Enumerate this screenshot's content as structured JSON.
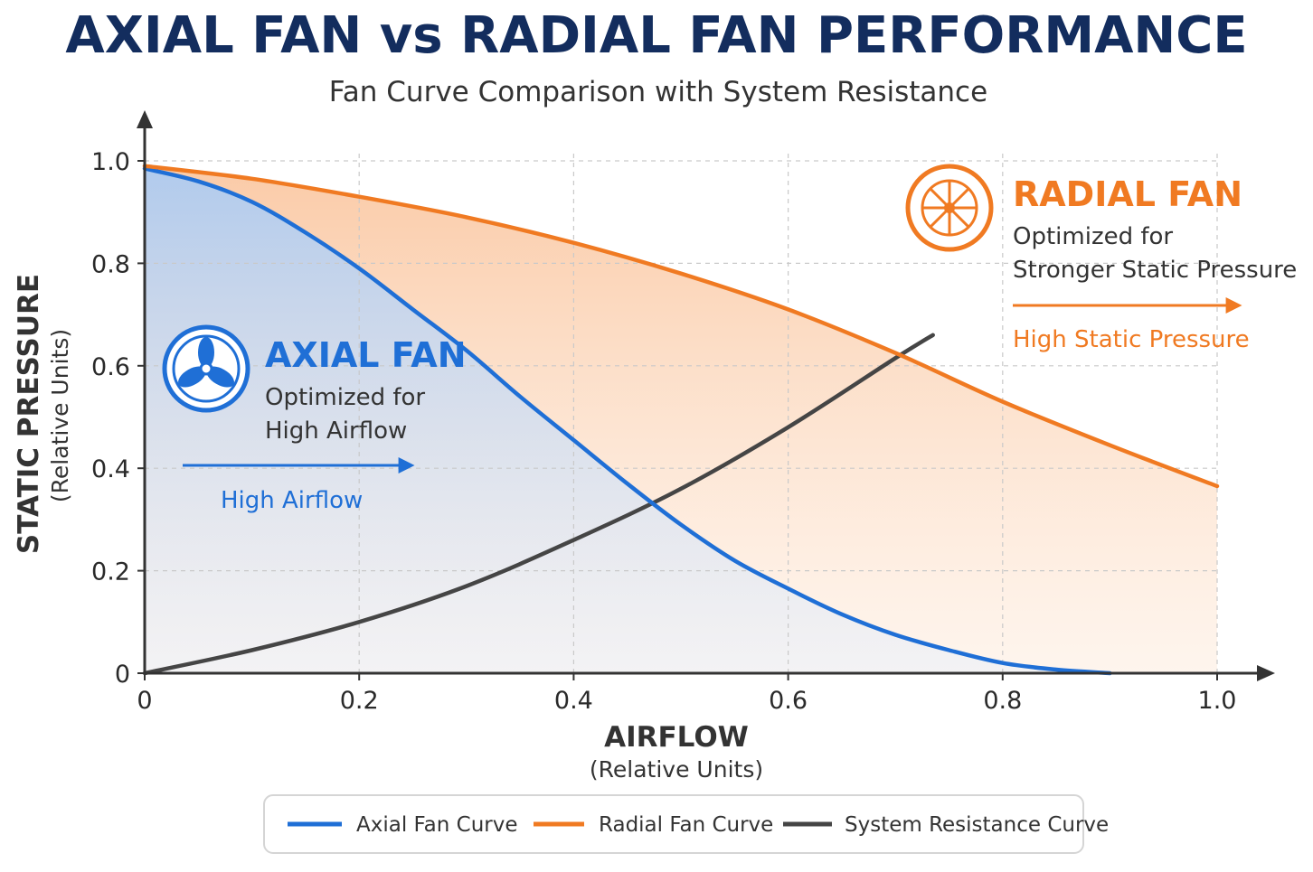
{
  "title": "AXIAL FAN vs RADIAL FAN PERFORMANCE",
  "subtitle": "Fan Curve Comparison with System Resistance",
  "colors": {
    "axial": "#1f6fd6",
    "radial": "#f07a22",
    "system": "#454545",
    "title": "#132d5e"
  },
  "callouts": {
    "axial": {
      "icon": "axial-fan-icon",
      "title": "AXIAL FAN",
      "line1": "Optimized for",
      "line2": "High Airflow",
      "arrow_label": "High Airflow"
    },
    "radial": {
      "icon": "radial-fan-icon",
      "title": "RADIAL FAN",
      "line1": "Optimized for",
      "line2": "Stronger Static Pressure",
      "arrow_label": "High Static Pressure"
    }
  },
  "legend": {
    "items": [
      {
        "label": "Axial Fan Curve",
        "color": "#1f6fd6"
      },
      {
        "label": "Radial Fan Curve",
        "color": "#f07a22"
      },
      {
        "label": "System Resistance Curve",
        "color": "#454545"
      }
    ]
  },
  "chart_data": {
    "type": "line",
    "xlabel": "AIRFLOW",
    "xlabel_sub": "(Relative Units)",
    "ylabel": "STATIC PRESSURE",
    "ylabel_sub": "(Relative Units)",
    "xlim": [
      0,
      1.0
    ],
    "ylim": [
      0,
      1.0
    ],
    "x_ticks": [
      {
        "v": 0,
        "label": "0"
      },
      {
        "v": 0.2,
        "label": "0.2"
      },
      {
        "v": 0.4,
        "label": "0.4"
      },
      {
        "v": 0.6,
        "label": "0.6"
      },
      {
        "v": 0.8,
        "label": "0.8"
      },
      {
        "v": 1.0,
        "label": "1.0"
      }
    ],
    "y_ticks": [
      {
        "v": 0,
        "label": "0"
      },
      {
        "v": 0.2,
        "label": "0.2"
      },
      {
        "v": 0.4,
        "label": "0.4"
      },
      {
        "v": 0.6,
        "label": "0.6"
      },
      {
        "v": 0.8,
        "label": "0.8"
      },
      {
        "v": 1.0,
        "label": "1.0"
      }
    ],
    "grid": true,
    "legend_position": "bottom",
    "series": [
      {
        "name": "Axial Fan Curve",
        "color": "#1f6fd6",
        "fill": true,
        "x": [
          0,
          0.05,
          0.1,
          0.15,
          0.2,
          0.25,
          0.3,
          0.35,
          0.4,
          0.45,
          0.5,
          0.55,
          0.6,
          0.65,
          0.7,
          0.75,
          0.8,
          0.85,
          0.9
        ],
        "y": [
          0.985,
          0.96,
          0.92,
          0.86,
          0.79,
          0.71,
          0.63,
          0.54,
          0.455,
          0.37,
          0.29,
          0.22,
          0.165,
          0.115,
          0.075,
          0.045,
          0.02,
          0.007,
          0
        ]
      },
      {
        "name": "Radial Fan Curve",
        "color": "#f07a22",
        "fill": true,
        "x": [
          0,
          0.1,
          0.2,
          0.3,
          0.4,
          0.5,
          0.6,
          0.7,
          0.8,
          0.9,
          1.0
        ],
        "y": [
          0.99,
          0.965,
          0.93,
          0.89,
          0.84,
          0.78,
          0.71,
          0.625,
          0.53,
          0.445,
          0.365
        ]
      },
      {
        "name": "System Resistance Curve",
        "color": "#454545",
        "fill": false,
        "x": [
          0,
          0.1,
          0.2,
          0.3,
          0.4,
          0.5,
          0.6,
          0.7,
          0.735
        ],
        "y": [
          0,
          0.045,
          0.1,
          0.17,
          0.26,
          0.36,
          0.48,
          0.615,
          0.66
        ]
      }
    ]
  }
}
